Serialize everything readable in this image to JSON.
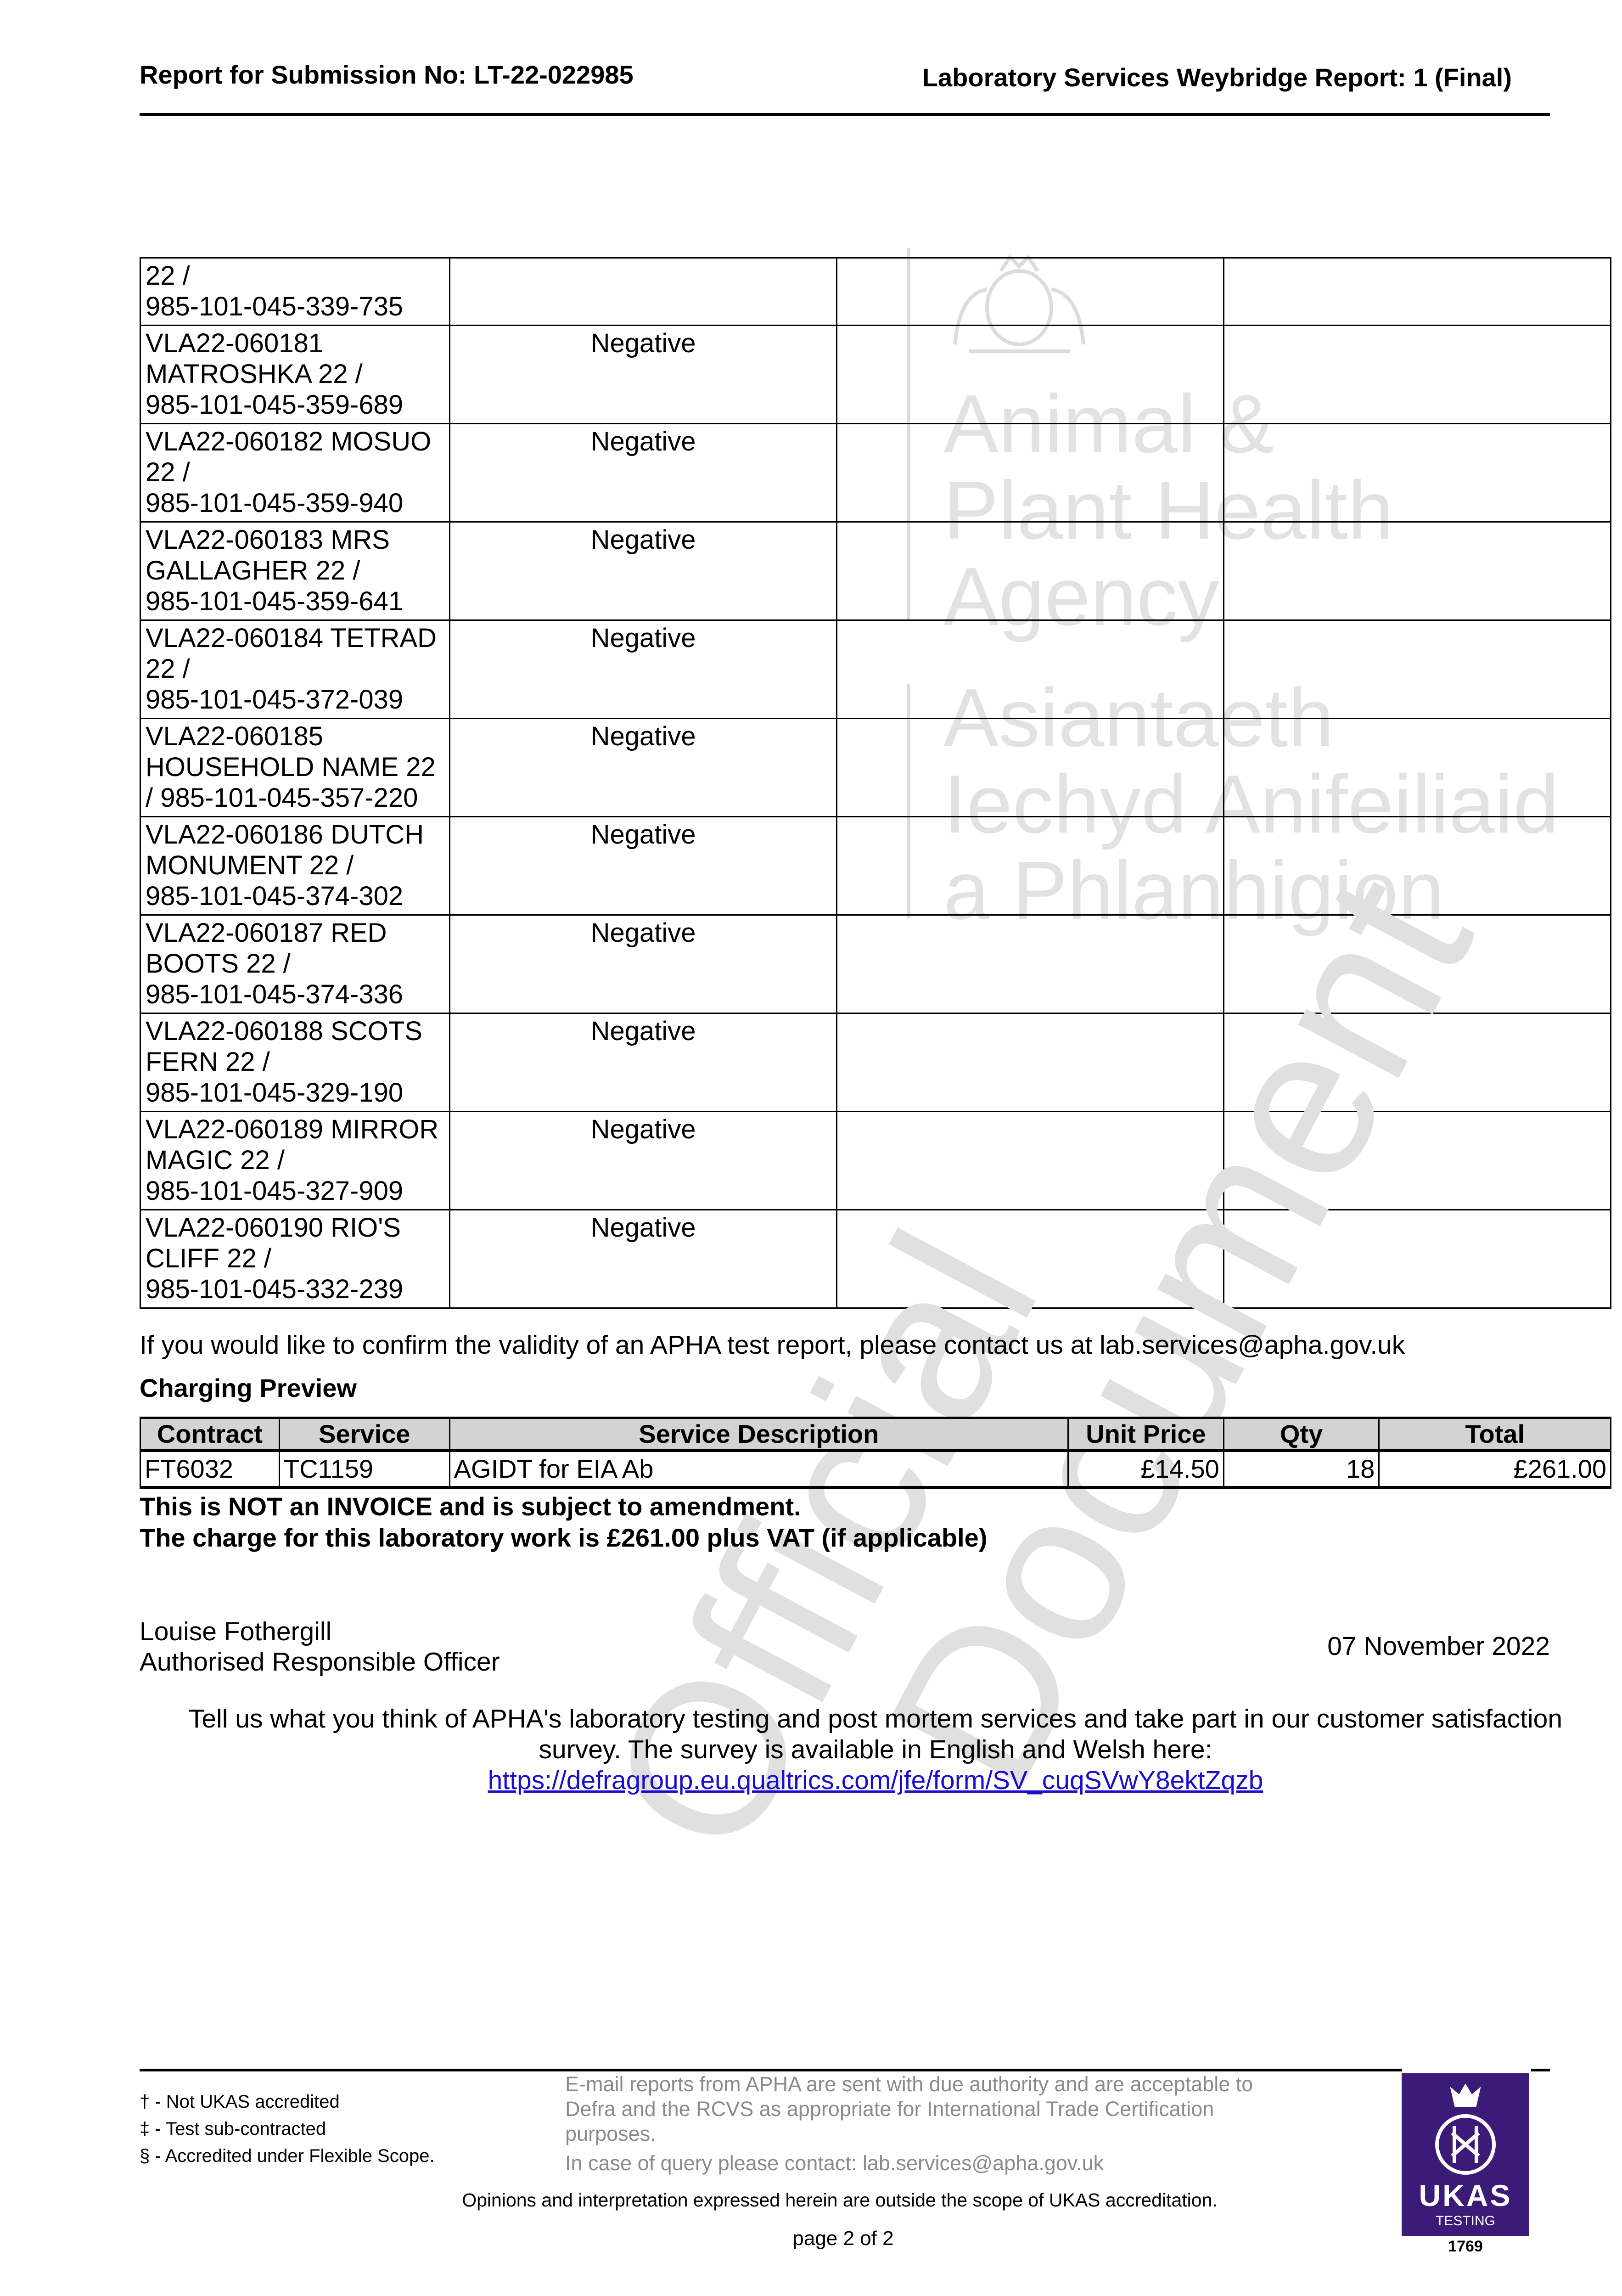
{
  "header": {
    "left": "Report for Submission No: LT-22-022985",
    "right": "Laboratory Services Weybridge Report: 1 (Final)"
  },
  "watermark_logo": {
    "lines_en": [
      "Animal &",
      "Plant Health",
      "Agency"
    ],
    "lines_cy": [
      "Asiantaeth",
      "Iechyd Anifeiliaid",
      "a Phlanhigion"
    ]
  },
  "watermark_text": [
    "Official",
    "Document"
  ],
  "results": [
    {
      "sample": "22 /\n985-101-045-339-735",
      "result": ""
    },
    {
      "sample": "VLA22-060181\nMATROSHKA 22 /\n985-101-045-359-689",
      "result": "Negative"
    },
    {
      "sample": "VLA22-060182 MOSUO\n22 /\n985-101-045-359-940",
      "result": "Negative"
    },
    {
      "sample": "VLA22-060183 MRS\nGALLAGHER 22 /\n985-101-045-359-641",
      "result": "Negative"
    },
    {
      "sample": "VLA22-060184 TETRAD\n22 /\n985-101-045-372-039",
      "result": "Negative"
    },
    {
      "sample": "VLA22-060185\nHOUSEHOLD NAME 22\n/ 985-101-045-357-220",
      "result": "Negative"
    },
    {
      "sample": "VLA22-060186 DUTCH\nMONUMENT 22 /\n985-101-045-374-302",
      "result": "Negative"
    },
    {
      "sample": "VLA22-060187 RED\nBOOTS 22 /\n985-101-045-374-336",
      "result": "Negative"
    },
    {
      "sample": "VLA22-060188 SCOTS\nFERN 22 /\n985-101-045-329-190",
      "result": "Negative"
    },
    {
      "sample": "VLA22-060189 MIRROR\nMAGIC 22 /\n985-101-045-327-909",
      "result": "Negative"
    },
    {
      "sample": "VLA22-060190 RIO'S\nCLIFF 22 /\n985-101-045-332-239",
      "result": "Negative"
    }
  ],
  "validity_note": "If you would like to confirm the validity of an APHA test report, please contact us at lab.services@apha.gov.uk",
  "charging": {
    "title": "Charging Preview",
    "columns": [
      "Contract",
      "Service",
      "Service Description",
      "Unit Price",
      "Qty",
      "Total"
    ],
    "rows": [
      [
        "FT6032",
        "TC1159",
        "AGIDT for EIA Ab",
        "£14.50",
        "18",
        "£261.00"
      ]
    ],
    "not_invoice": "This is NOT an INVOICE and is subject to amendment.",
    "charge_line": "The charge for this laboratory work is £261.00 plus VAT (if applicable)"
  },
  "signatory": {
    "name": "Louise Fothergill",
    "role": "Authorised Responsible Officer",
    "date": "07 November 2022"
  },
  "survey": {
    "line1": "Tell us what you think of APHA's laboratory testing and post mortem services and take part in our customer satisfaction",
    "line2": "survey. The survey is available in English and Welsh here:",
    "link": "https://defragroup.eu.qualtrics.com/jfe/form/SV_cuqSVwY8ektZqzb"
  },
  "footer": {
    "notes": [
      "† - Not UKAS accredited",
      "‡ - Test sub-contracted",
      "§ - Accredited under Flexible Scope."
    ],
    "email_note": [
      "E-mail reports from APHA are sent with due authority and are acceptable to",
      "Defra and the RCVS as appropriate for International Trade Certification",
      "purposes."
    ],
    "query": "In case of query please contact: lab.services@apha.gov.uk",
    "opinions": "Opinions and interpretation expressed herein are outside the scope of UKAS accreditation.",
    "page": "page 2 of 2"
  },
  "ukas": {
    "name": "UKAS",
    "sub": "TESTING",
    "number": "1769",
    "color": "#3b1a78"
  }
}
